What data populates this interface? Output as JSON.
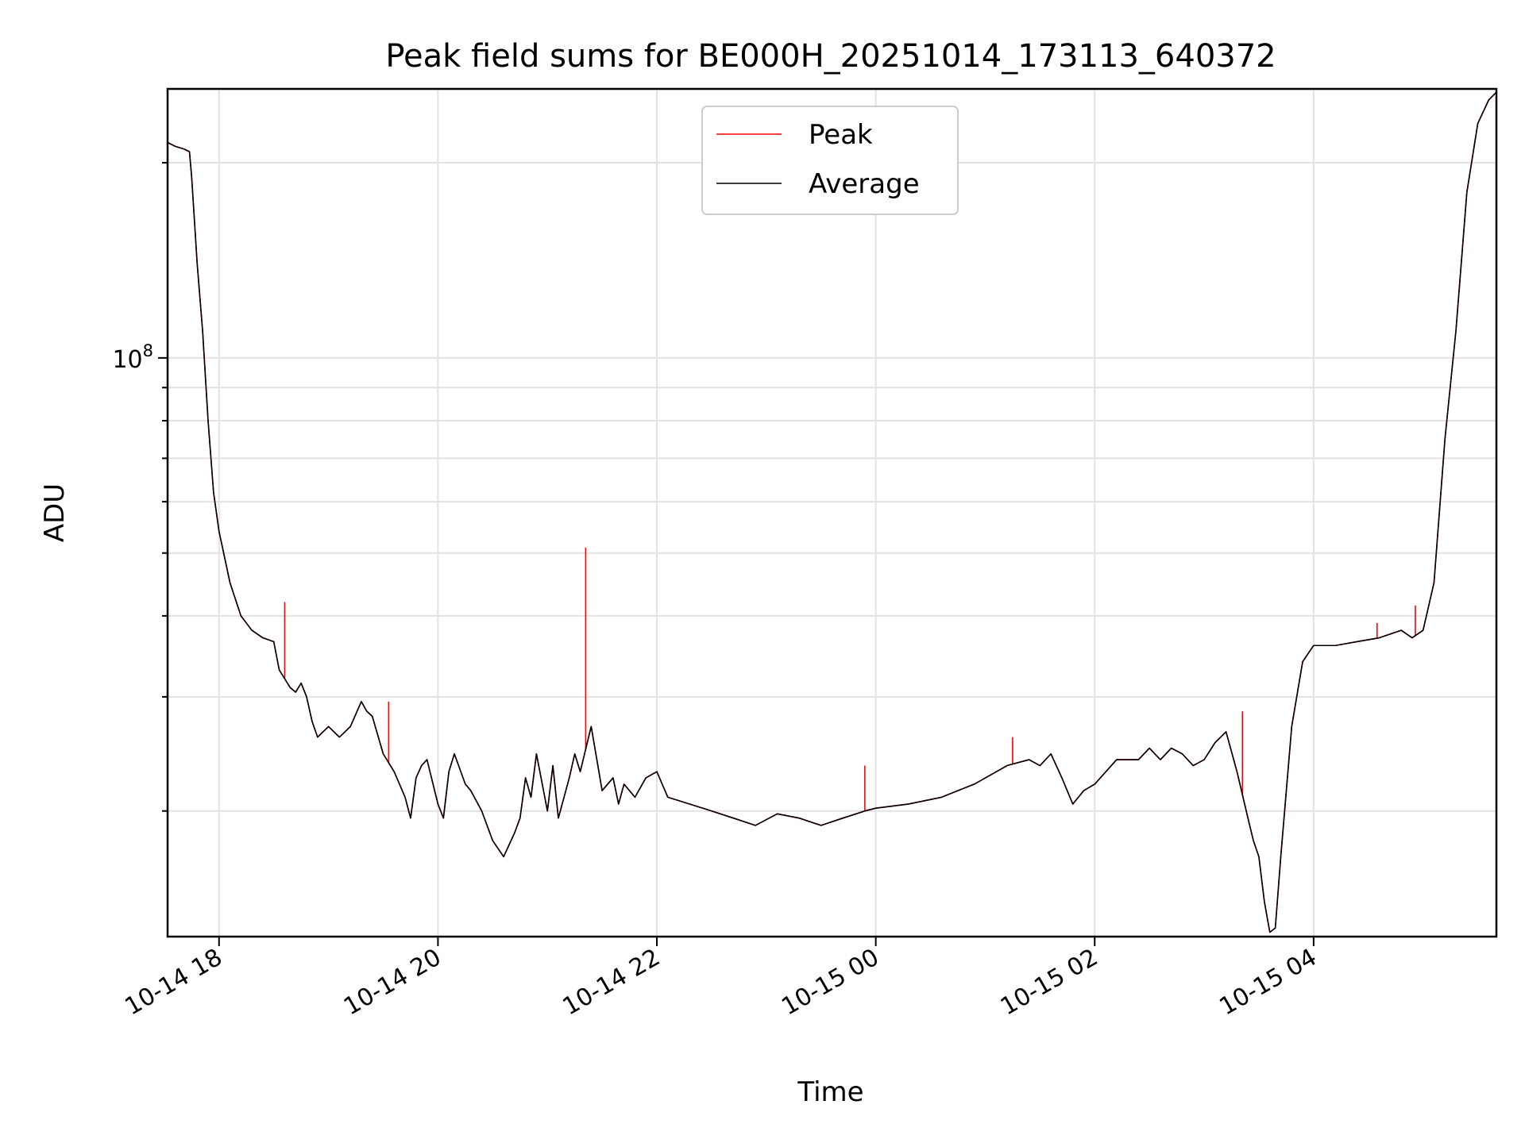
{
  "chart_data": {
    "type": "line",
    "title": "Peak field sums for BE000H_20251014_173113_640372",
    "xlabel": "Time",
    "ylabel": "ADU",
    "yscale": "log",
    "ylim": [
      12800000,
      260000000
    ],
    "xlim_hours": [
      -0.47,
      11.67
    ],
    "x_ticks": [
      {
        "hour": 0,
        "label": "10-14 18"
      },
      {
        "hour": 2,
        "label": "10-14 20"
      },
      {
        "hour": 4,
        "label": "10-14 22"
      },
      {
        "hour": 6,
        "label": "10-15 00"
      },
      {
        "hour": 8,
        "label": "10-15 02"
      },
      {
        "hour": 10,
        "label": "10-15 04"
      }
    ],
    "y_major_ticks": [
      {
        "value": 100000000,
        "base": "10",
        "exponent": "8"
      }
    ],
    "y_minor_ticks": [
      20000000,
      30000000,
      40000000,
      50000000,
      60000000,
      70000000,
      80000000,
      90000000,
      200000000
    ],
    "legend": {
      "position": "upper center",
      "entries": [
        "Peak",
        "Average"
      ]
    },
    "colors": {
      "peak": "#ff0000",
      "average": "#000000"
    },
    "x_unit": "hours relative to 10-14 18:00",
    "average": {
      "x": [
        -0.47,
        -0.4,
        -0.32,
        -0.27,
        -0.25,
        -0.2,
        -0.15,
        -0.1,
        -0.05,
        0.0,
        0.1,
        0.2,
        0.3,
        0.4,
        0.5,
        0.55,
        0.6,
        0.65,
        0.7,
        0.75,
        0.8,
        0.85,
        0.9,
        1.0,
        1.1,
        1.2,
        1.3,
        1.35,
        1.4,
        1.5,
        1.6,
        1.7,
        1.75,
        1.8,
        1.85,
        1.9,
        2.0,
        2.05,
        2.1,
        2.15,
        2.25,
        2.3,
        2.4,
        2.5,
        2.6,
        2.7,
        2.75,
        2.8,
        2.85,
        2.9,
        3.0,
        3.05,
        3.1,
        3.2,
        3.25,
        3.3,
        3.4,
        3.5,
        3.6,
        3.65,
        3.7,
        3.8,
        3.9,
        4.0,
        4.1,
        4.3,
        4.5,
        4.7,
        4.9,
        5.1,
        5.3,
        5.5,
        5.7,
        5.9,
        6.0,
        6.3,
        6.6,
        6.9,
        7.2,
        7.4,
        7.5,
        7.6,
        7.7,
        7.8,
        7.9,
        8.0,
        8.2,
        8.4,
        8.5,
        8.6,
        8.7,
        8.8,
        8.9,
        9.0,
        9.1,
        9.2,
        9.3,
        9.4,
        9.45,
        9.5,
        9.55,
        9.6,
        9.65,
        9.7,
        9.8,
        9.9,
        10.0,
        10.2,
        10.4,
        10.6,
        10.8,
        10.9,
        11.0,
        11.1,
        11.2,
        11.3,
        11.4,
        11.5,
        11.6,
        11.67
      ],
      "values": [
        215000000,
        212000000,
        210000000,
        208000000,
        190000000,
        140000000,
        110000000,
        80000000,
        62000000,
        54000000,
        45000000,
        40000000,
        38000000,
        37000000,
        36500000,
        33000000,
        32000000,
        31000000,
        30500000,
        31500000,
        30000000,
        27500000,
        26000000,
        27000000,
        26000000,
        27000000,
        29500000,
        28500000,
        28000000,
        24500000,
        23000000,
        21000000,
        19500000,
        22500000,
        23500000,
        24000000,
        20500000,
        19500000,
        23000000,
        24500000,
        22000000,
        21500000,
        20000000,
        18000000,
        17000000,
        18500000,
        19500000,
        22500000,
        21000000,
        24500000,
        20000000,
        23500000,
        19500000,
        22500000,
        24500000,
        23000000,
        27000000,
        21500000,
        22500000,
        20500000,
        22000000,
        21000000,
        22500000,
        23000000,
        21000000,
        20500000,
        20000000,
        19500000,
        19000000,
        19800000,
        19500000,
        19000000,
        19500000,
        20000000,
        20200000,
        20500000,
        21000000,
        22000000,
        23500000,
        24000000,
        23500000,
        24500000,
        22500000,
        20500000,
        21500000,
        22000000,
        24000000,
        24000000,
        25000000,
        24000000,
        25000000,
        24500000,
        23500000,
        24000000,
        25500000,
        26500000,
        23000000,
        19500000,
        18000000,
        17000000,
        14500000,
        13000000,
        13200000,
        17000000,
        27000000,
        34000000,
        36000000,
        36000000,
        36500000,
        37000000,
        38000000,
        37000000,
        38000000,
        45000000,
        75000000,
        110000000,
        180000000,
        230000000,
        250000000,
        257000000
      ]
    },
    "peak": {
      "x": [
        -0.47,
        -0.4,
        -0.32,
        -0.27,
        -0.25,
        -0.2,
        -0.15,
        -0.1,
        -0.05,
        0.0,
        0.1,
        0.2,
        0.3,
        0.4,
        0.5,
        0.55,
        0.6,
        0.65,
        0.7,
        0.75,
        0.8,
        0.85,
        0.9,
        1.0,
        1.1,
        1.2,
        1.3,
        1.35,
        1.4,
        1.5,
        1.6,
        1.7,
        1.75,
        1.8,
        1.85,
        1.9,
        2.0,
        2.05,
        2.1,
        2.15,
        2.25,
        2.3,
        2.4,
        2.5,
        2.6,
        2.7,
        2.75,
        2.8,
        2.85,
        2.9,
        3.0,
        3.05,
        3.1,
        3.2,
        3.25,
        3.3,
        3.4,
        3.5,
        3.6,
        3.65,
        3.7,
        3.8,
        3.9,
        4.0,
        4.1,
        4.3,
        4.5,
        4.7,
        4.9,
        5.1,
        5.3,
        5.5,
        5.7,
        5.9,
        6.0,
        6.3,
        6.6,
        6.9,
        7.2,
        7.4,
        7.5,
        7.6,
        7.7,
        7.8,
        7.9,
        8.0,
        8.2,
        8.4,
        8.5,
        8.6,
        8.7,
        8.8,
        8.9,
        9.0,
        9.1,
        9.2,
        9.3,
        9.4,
        9.45,
        9.5,
        9.55,
        9.6,
        9.65,
        9.7,
        9.8,
        9.9,
        10.0,
        10.2,
        10.4,
        10.6,
        10.8,
        10.9,
        11.0,
        11.1,
        11.2,
        11.3,
        11.4,
        11.5,
        11.6,
        11.67
      ],
      "values": [
        215000000,
        212000000,
        210000000,
        208000000,
        190000000,
        140000000,
        110000000,
        80000000,
        62000000,
        54000000,
        45000000,
        40000000,
        38000000,
        37000000,
        36500000,
        33000000,
        32000000,
        31000000,
        30500000,
        31500000,
        30000000,
        27500000,
        26000000,
        27000000,
        26000000,
        27000000,
        29500000,
        28500000,
        28000000,
        24500000,
        23000000,
        21000000,
        19500000,
        22500000,
        23500000,
        24000000,
        20500000,
        19500000,
        23000000,
        24500000,
        22000000,
        21500000,
        20000000,
        18000000,
        17000000,
        18500000,
        19500000,
        22500000,
        21000000,
        24500000,
        20000000,
        23500000,
        19500000,
        22500000,
        24500000,
        23000000,
        27000000,
        21500000,
        22500000,
        20500000,
        22000000,
        21000000,
        22500000,
        23000000,
        21000000,
        20500000,
        20000000,
        19500000,
        19000000,
        19800000,
        19500000,
        19000000,
        19500000,
        20000000,
        20200000,
        20500000,
        21000000,
        22000000,
        23500000,
        24000000,
        23500000,
        24500000,
        22500000,
        20500000,
        21500000,
        22000000,
        24000000,
        24000000,
        25000000,
        24000000,
        25000000,
        24500000,
        23500000,
        24000000,
        25500000,
        26500000,
        23000000,
        19500000,
        18000000,
        17000000,
        14500000,
        13000000,
        13200000,
        17000000,
        27000000,
        34000000,
        36000000,
        36000000,
        36500000,
        37000000,
        38000000,
        37000000,
        38000000,
        45000000,
        75000000,
        110000000,
        180000000,
        230000000,
        250000000,
        257000000
      ],
      "spikes": [
        {
          "x": 0.6,
          "value": 42000000
        },
        {
          "x": 3.35,
          "value": 51000000
        },
        {
          "x": 1.55,
          "value": 29500000
        },
        {
          "x": 5.9,
          "value": 23500000
        },
        {
          "x": 10.93,
          "value": 41500000
        },
        {
          "x": 10.58,
          "value": 39000000
        },
        {
          "x": 9.35,
          "value": 28500000
        },
        {
          "x": 7.25,
          "value": 26000000
        }
      ]
    }
  }
}
